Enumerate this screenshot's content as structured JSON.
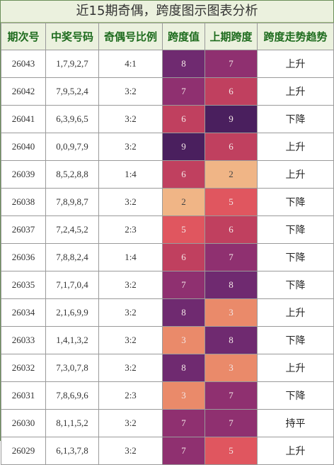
{
  "title": "近15期奇偶，跨度图示图表分析",
  "headers": [
    "期次号",
    "中奖号码",
    "奇偶号比例",
    "跨度值",
    "上期跨度",
    "跨度走势趋势"
  ],
  "rows": [
    {
      "issue": "26043",
      "numbers": "1,7,9,2,7",
      "ratio": "4:1",
      "span": "8",
      "prev_span": "7",
      "trend": "上升"
    },
    {
      "issue": "26042",
      "numbers": "7,9,5,2,4",
      "ratio": "3:2",
      "span": "7",
      "prev_span": "6",
      "trend": "上升"
    },
    {
      "issue": "26041",
      "numbers": "6,3,9,6,5",
      "ratio": "3:2",
      "span": "6",
      "prev_span": "9",
      "trend": "下降"
    },
    {
      "issue": "26040",
      "numbers": "0,0,9,7,9",
      "ratio": "3:2",
      "span": "9",
      "prev_span": "6",
      "trend": "上升"
    },
    {
      "issue": "26039",
      "numbers": "8,5,2,8,8",
      "ratio": "1:4",
      "span": "6",
      "prev_span": "2",
      "trend": "上升"
    },
    {
      "issue": "26038",
      "numbers": "7,8,9,8,7",
      "ratio": "3:2",
      "span": "2",
      "prev_span": "5",
      "trend": "下降"
    },
    {
      "issue": "26037",
      "numbers": "7,2,4,5,2",
      "ratio": "2:3",
      "span": "5",
      "prev_span": "6",
      "trend": "下降"
    },
    {
      "issue": "26036",
      "numbers": "7,8,8,2,4",
      "ratio": "1:4",
      "span": "6",
      "prev_span": "7",
      "trend": "下降"
    },
    {
      "issue": "26035",
      "numbers": "7,1,7,0,4",
      "ratio": "3:2",
      "span": "7",
      "prev_span": "8",
      "trend": "下降"
    },
    {
      "issue": "26034",
      "numbers": "2,1,6,9,9",
      "ratio": "3:2",
      "span": "8",
      "prev_span": "3",
      "trend": "上升"
    },
    {
      "issue": "26033",
      "numbers": "1,4,1,3,2",
      "ratio": "3:2",
      "span": "3",
      "prev_span": "8",
      "trend": "下降"
    },
    {
      "issue": "26032",
      "numbers": "7,3,0,7,8",
      "ratio": "3:2",
      "span": "8",
      "prev_span": "3",
      "trend": "上升"
    },
    {
      "issue": "26031",
      "numbers": "7,8,6,9,6",
      "ratio": "2:3",
      "span": "3",
      "prev_span": "7",
      "trend": "下降"
    },
    {
      "issue": "26030",
      "numbers": "8,1,1,5,2",
      "ratio": "3:2",
      "span": "7",
      "prev_span": "7",
      "trend": "持平"
    },
    {
      "issue": "26029",
      "numbers": "6,1,3,7,8",
      "ratio": "3:2",
      "span": "7",
      "prev_span": "5",
      "trend": "上升"
    }
  ],
  "span_colors": {
    "2": "#f0b586",
    "3": "#ea8a6a",
    "5": "#e0565f",
    "6": "#c0405f",
    "7": "#8f3070",
    "8": "#6f2a70",
    "9": "#4a1f5e"
  }
}
